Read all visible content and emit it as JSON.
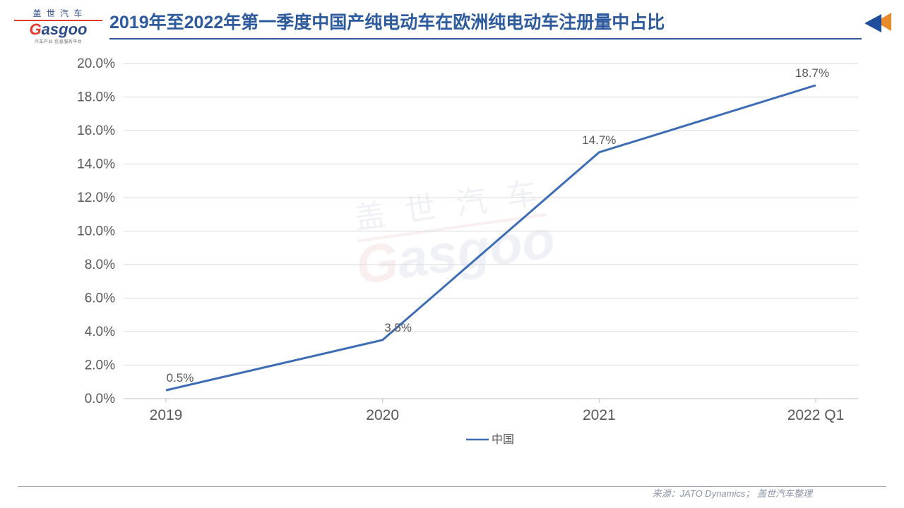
{
  "logo": {
    "cn": "盖 世 汽 车",
    "en_prefix": "G",
    "en_rest": "asgoo",
    "sub": "汽车产业 信息服务平台"
  },
  "title": {
    "text": "2019年至2022年第一季度中国产纯电动车在欧洲纯电动车注册量中占比",
    "color": "#2e5a9e",
    "underline_color": "#2e5a9e",
    "fontsize": 25
  },
  "corner_decor": {
    "front_color": "#1f4e9b",
    "back_color": "#e88b2d"
  },
  "chart": {
    "type": "line",
    "categories": [
      "2019",
      "2020",
      "2021",
      "2022 Q1"
    ],
    "series_name": "中国",
    "values": [
      0.5,
      3.5,
      14.7,
      18.7
    ],
    "data_labels": [
      "0.5%",
      "3.5%",
      "14.7%",
      "18.7%"
    ],
    "line_color": "#3e6db5",
    "line_width": 3,
    "ymin": 0.0,
    "ymax": 20.0,
    "ytick_step": 2.0,
    "ytick_labels": [
      "0.0%",
      "2.0%",
      "4.0%",
      "6.0%",
      "8.0%",
      "10.0%",
      "12.0%",
      "14.0%",
      "16.0%",
      "18.0%",
      "20.0%"
    ],
    "grid_color": "#d9d9d9",
    "axis_color": "#bfbfbf",
    "tick_text_color": "#595959",
    "background_color": "#ffffff",
    "tick_fontsize": 19,
    "category_fontsize": 21,
    "data_label_fontsize": 17,
    "legend_fontsize": 16
  },
  "footer": {
    "rule_color": "#9aa7bf",
    "text_prefix": "来源：",
    "text": "JATO Dynamics； 盖世汽车整理",
    "text_color": "#8a94a6"
  },
  "watermark": {
    "cn": "盖 世 汽 车",
    "en_prefix": "G",
    "en_rest": "asgoo"
  }
}
